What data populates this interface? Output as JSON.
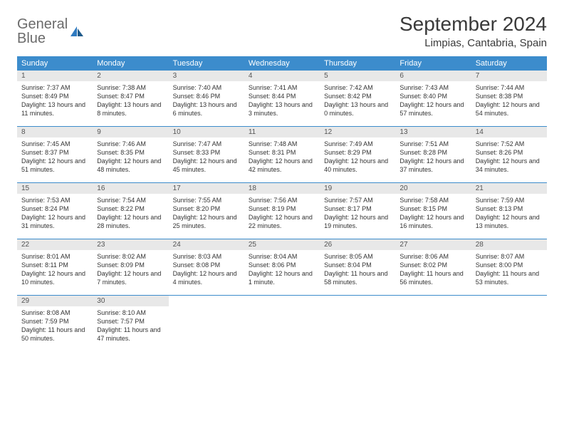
{
  "logo": {
    "line1": "General",
    "line2": "Blue"
  },
  "title": "September 2024",
  "location": "Limpias, Cantabria, Spain",
  "colors": {
    "header_bar": "#3c8ccc",
    "daynum_bg": "#e8e8e8",
    "text": "#333333",
    "title_text": "#3a3a3a",
    "logo_gray": "#6b6b6b",
    "logo_blue": "#2f7ac0",
    "row_divider": "#3c8ccc"
  },
  "day_names": [
    "Sunday",
    "Monday",
    "Tuesday",
    "Wednesday",
    "Thursday",
    "Friday",
    "Saturday"
  ],
  "weeks": [
    [
      {
        "n": "1",
        "sr": "Sunrise: 7:37 AM",
        "ss": "Sunset: 8:49 PM",
        "dl": "Daylight: 13 hours and 11 minutes."
      },
      {
        "n": "2",
        "sr": "Sunrise: 7:38 AM",
        "ss": "Sunset: 8:47 PM",
        "dl": "Daylight: 13 hours and 8 minutes."
      },
      {
        "n": "3",
        "sr": "Sunrise: 7:40 AM",
        "ss": "Sunset: 8:46 PM",
        "dl": "Daylight: 13 hours and 6 minutes."
      },
      {
        "n": "4",
        "sr": "Sunrise: 7:41 AM",
        "ss": "Sunset: 8:44 PM",
        "dl": "Daylight: 13 hours and 3 minutes."
      },
      {
        "n": "5",
        "sr": "Sunrise: 7:42 AM",
        "ss": "Sunset: 8:42 PM",
        "dl": "Daylight: 13 hours and 0 minutes."
      },
      {
        "n": "6",
        "sr": "Sunrise: 7:43 AM",
        "ss": "Sunset: 8:40 PM",
        "dl": "Daylight: 12 hours and 57 minutes."
      },
      {
        "n": "7",
        "sr": "Sunrise: 7:44 AM",
        "ss": "Sunset: 8:38 PM",
        "dl": "Daylight: 12 hours and 54 minutes."
      }
    ],
    [
      {
        "n": "8",
        "sr": "Sunrise: 7:45 AM",
        "ss": "Sunset: 8:37 PM",
        "dl": "Daylight: 12 hours and 51 minutes."
      },
      {
        "n": "9",
        "sr": "Sunrise: 7:46 AM",
        "ss": "Sunset: 8:35 PM",
        "dl": "Daylight: 12 hours and 48 minutes."
      },
      {
        "n": "10",
        "sr": "Sunrise: 7:47 AM",
        "ss": "Sunset: 8:33 PM",
        "dl": "Daylight: 12 hours and 45 minutes."
      },
      {
        "n": "11",
        "sr": "Sunrise: 7:48 AM",
        "ss": "Sunset: 8:31 PM",
        "dl": "Daylight: 12 hours and 42 minutes."
      },
      {
        "n": "12",
        "sr": "Sunrise: 7:49 AM",
        "ss": "Sunset: 8:29 PM",
        "dl": "Daylight: 12 hours and 40 minutes."
      },
      {
        "n": "13",
        "sr": "Sunrise: 7:51 AM",
        "ss": "Sunset: 8:28 PM",
        "dl": "Daylight: 12 hours and 37 minutes."
      },
      {
        "n": "14",
        "sr": "Sunrise: 7:52 AM",
        "ss": "Sunset: 8:26 PM",
        "dl": "Daylight: 12 hours and 34 minutes."
      }
    ],
    [
      {
        "n": "15",
        "sr": "Sunrise: 7:53 AM",
        "ss": "Sunset: 8:24 PM",
        "dl": "Daylight: 12 hours and 31 minutes."
      },
      {
        "n": "16",
        "sr": "Sunrise: 7:54 AM",
        "ss": "Sunset: 8:22 PM",
        "dl": "Daylight: 12 hours and 28 minutes."
      },
      {
        "n": "17",
        "sr": "Sunrise: 7:55 AM",
        "ss": "Sunset: 8:20 PM",
        "dl": "Daylight: 12 hours and 25 minutes."
      },
      {
        "n": "18",
        "sr": "Sunrise: 7:56 AM",
        "ss": "Sunset: 8:19 PM",
        "dl": "Daylight: 12 hours and 22 minutes."
      },
      {
        "n": "19",
        "sr": "Sunrise: 7:57 AM",
        "ss": "Sunset: 8:17 PM",
        "dl": "Daylight: 12 hours and 19 minutes."
      },
      {
        "n": "20",
        "sr": "Sunrise: 7:58 AM",
        "ss": "Sunset: 8:15 PM",
        "dl": "Daylight: 12 hours and 16 minutes."
      },
      {
        "n": "21",
        "sr": "Sunrise: 7:59 AM",
        "ss": "Sunset: 8:13 PM",
        "dl": "Daylight: 12 hours and 13 minutes."
      }
    ],
    [
      {
        "n": "22",
        "sr": "Sunrise: 8:01 AM",
        "ss": "Sunset: 8:11 PM",
        "dl": "Daylight: 12 hours and 10 minutes."
      },
      {
        "n": "23",
        "sr": "Sunrise: 8:02 AM",
        "ss": "Sunset: 8:09 PM",
        "dl": "Daylight: 12 hours and 7 minutes."
      },
      {
        "n": "24",
        "sr": "Sunrise: 8:03 AM",
        "ss": "Sunset: 8:08 PM",
        "dl": "Daylight: 12 hours and 4 minutes."
      },
      {
        "n": "25",
        "sr": "Sunrise: 8:04 AM",
        "ss": "Sunset: 8:06 PM",
        "dl": "Daylight: 12 hours and 1 minute."
      },
      {
        "n": "26",
        "sr": "Sunrise: 8:05 AM",
        "ss": "Sunset: 8:04 PM",
        "dl": "Daylight: 11 hours and 58 minutes."
      },
      {
        "n": "27",
        "sr": "Sunrise: 8:06 AM",
        "ss": "Sunset: 8:02 PM",
        "dl": "Daylight: 11 hours and 56 minutes."
      },
      {
        "n": "28",
        "sr": "Sunrise: 8:07 AM",
        "ss": "Sunset: 8:00 PM",
        "dl": "Daylight: 11 hours and 53 minutes."
      }
    ],
    [
      {
        "n": "29",
        "sr": "Sunrise: 8:08 AM",
        "ss": "Sunset: 7:59 PM",
        "dl": "Daylight: 11 hours and 50 minutes."
      },
      {
        "n": "30",
        "sr": "Sunrise: 8:10 AM",
        "ss": "Sunset: 7:57 PM",
        "dl": "Daylight: 11 hours and 47 minutes."
      },
      {
        "empty": true
      },
      {
        "empty": true
      },
      {
        "empty": true
      },
      {
        "empty": true
      },
      {
        "empty": true
      }
    ]
  ]
}
